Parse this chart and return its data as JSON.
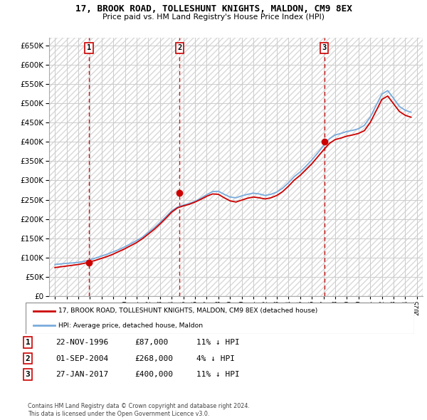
{
  "title": "17, BROOK ROAD, TOLLESHUNT KNIGHTS, MALDON, CM9 8EX",
  "subtitle": "Price paid vs. HM Land Registry's House Price Index (HPI)",
  "legend_line1": "17, BROOK ROAD, TOLLESHUNT KNIGHTS, MALDON, CM9 8EX (detached house)",
  "legend_line2": "HPI: Average price, detached house, Maldon",
  "footer1": "Contains HM Land Registry data © Crown copyright and database right 2024.",
  "footer2": "This data is licensed under the Open Government Licence v3.0.",
  "transactions": [
    {
      "num": 1,
      "date": "22-NOV-1996",
      "price": "£87,000",
      "rel": "11% ↓ HPI",
      "year": 1996.9
    },
    {
      "num": 2,
      "date": "01-SEP-2004",
      "price": "£268,000",
      "rel": "4% ↓ HPI",
      "year": 2004.67
    },
    {
      "num": 3,
      "date": "27-JAN-2017",
      "price": "£400,000",
      "rel": "11% ↓ HPI",
      "year": 2017.07
    }
  ],
  "transaction_prices": [
    87000,
    268000,
    400000
  ],
  "hpi_years": [
    1994,
    1994.5,
    1995,
    1995.5,
    1996,
    1996.5,
    1997,
    1997.5,
    1998,
    1998.5,
    1999,
    1999.5,
    2000,
    2000.5,
    2001,
    2001.5,
    2002,
    2002.5,
    2003,
    2003.5,
    2004,
    2004.5,
    2005,
    2005.5,
    2006,
    2006.5,
    2007,
    2007.5,
    2008,
    2008.5,
    2009,
    2009.5,
    2010,
    2010.5,
    2011,
    2011.5,
    2012,
    2012.5,
    2013,
    2013.5,
    2014,
    2014.5,
    2015,
    2015.5,
    2016,
    2016.5,
    2017,
    2017.5,
    2018,
    2018.5,
    2019,
    2019.5,
    2020,
    2020.5,
    2021,
    2021.5,
    2022,
    2022.5,
    2023,
    2023.5,
    2024,
    2024.5
  ],
  "hpi_values": [
    82000,
    83500,
    85000,
    86000,
    87500,
    90000,
    94000,
    99000,
    104000,
    109000,
    115000,
    121000,
    128000,
    136000,
    144000,
    153000,
    165000,
    177000,
    191000,
    206000,
    221000,
    231000,
    236000,
    240000,
    246000,
    254000,
    263000,
    271000,
    272000,
    264000,
    257000,
    255000,
    260000,
    264000,
    267000,
    265000,
    261000,
    264000,
    270000,
    280000,
    294000,
    310000,
    322000,
    337000,
    353000,
    371000,
    390000,
    408000,
    418000,
    422000,
    427000,
    430000,
    434000,
    443000,
    464000,
    494000,
    524000,
    533000,
    513000,
    492000,
    482000,
    477000
  ],
  "price_years": [
    1994,
    1994.5,
    1995,
    1995.5,
    1996,
    1996.5,
    1997,
    1997.5,
    1998,
    1998.5,
    1999,
    1999.5,
    2000,
    2000.5,
    2001,
    2001.5,
    2002,
    2002.5,
    2003,
    2003.5,
    2004,
    2004.5,
    2005,
    2005.5,
    2006,
    2006.5,
    2007,
    2007.5,
    2008,
    2008.5,
    2009,
    2009.5,
    2010,
    2010.5,
    2011,
    2011.5,
    2012,
    2012.5,
    2013,
    2013.5,
    2014,
    2014.5,
    2015,
    2015.5,
    2016,
    2016.5,
    2017,
    2017.5,
    2018,
    2018.5,
    2019,
    2019.5,
    2020,
    2020.5,
    2021,
    2021.5,
    2022,
    2022.5,
    2023,
    2023.5,
    2024,
    2024.5
  ],
  "price_values": [
    74000,
    76000,
    78000,
    80000,
    82000,
    85000,
    89000,
    93000,
    98000,
    103000,
    109000,
    116000,
    123000,
    131000,
    139000,
    149000,
    161000,
    173000,
    187000,
    202000,
    218000,
    229000,
    234000,
    238000,
    244000,
    251000,
    259000,
    265000,
    264000,
    255000,
    247000,
    244000,
    249000,
    254000,
    257000,
    255000,
    252000,
    255000,
    261000,
    271000,
    285000,
    301000,
    313000,
    328000,
    343000,
    361000,
    379000,
    396000,
    406000,
    410000,
    415000,
    418000,
    422000,
    429000,
    450000,
    480000,
    510000,
    519000,
    499000,
    479000,
    469000,
    464000
  ],
  "ylim": [
    0,
    670000
  ],
  "xlim": [
    1993.5,
    2025.5
  ],
  "yticks": [
    0,
    50000,
    100000,
    150000,
    200000,
    250000,
    300000,
    350000,
    400000,
    450000,
    500000,
    550000,
    600000,
    650000
  ],
  "xtick_years": [
    1994,
    1995,
    1996,
    1997,
    1998,
    1999,
    2000,
    2001,
    2002,
    2003,
    2004,
    2005,
    2006,
    2007,
    2008,
    2009,
    2010,
    2011,
    2012,
    2013,
    2014,
    2015,
    2016,
    2017,
    2018,
    2019,
    2020,
    2021,
    2022,
    2023,
    2024,
    2025
  ],
  "hpi_color": "#7aabdc",
  "price_color": "#cc0000",
  "marker_color": "#cc0000",
  "vline_color": "#cc0000",
  "grid_color": "#cccccc",
  "hatch_color": "#d8d8d8"
}
